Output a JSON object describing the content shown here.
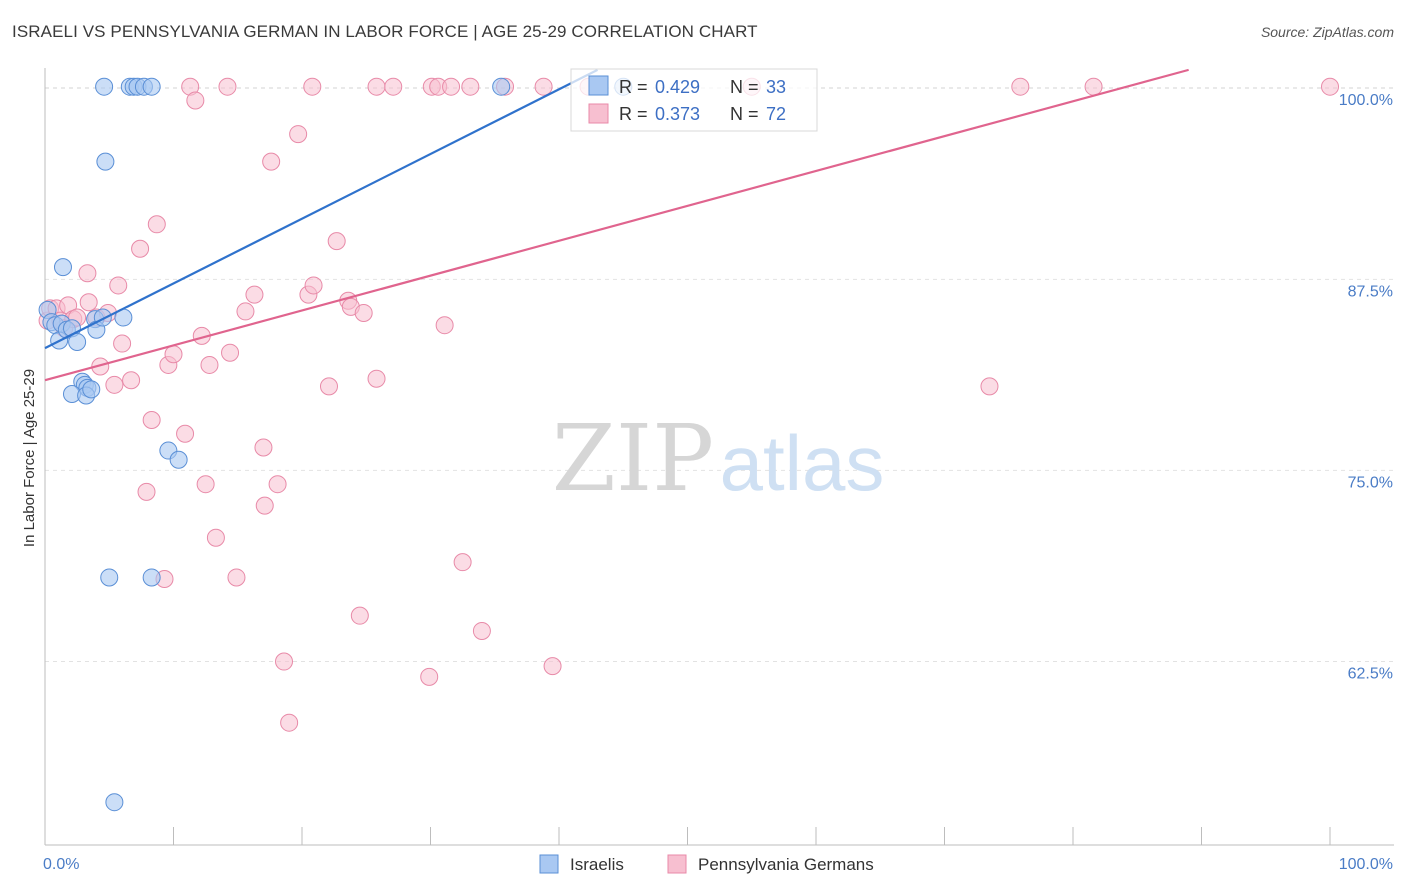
{
  "title": "ISRAELI VS PENNSYLVANIA GERMAN IN LABOR FORCE | AGE 25-29 CORRELATION CHART",
  "source": "Source: ZipAtlas.com",
  "watermark": {
    "zip": "ZIP",
    "atlas": "atlas"
  },
  "colors": {
    "israelis_fill": "#a9c8f2",
    "israelis_stroke": "#5a8fd6",
    "israelis_line": "#2f72cc",
    "pg_fill": "#f7bfd0",
    "pg_stroke": "#e88aa8",
    "pg_line": "#e0648e",
    "grid": "#e2e2e2",
    "tick_text": "#4a7cc6"
  },
  "legend": {
    "israelis": {
      "r_label": "R = ",
      "r_value": "0.429",
      "n_label": "N = ",
      "n_value": "33"
    },
    "pg": {
      "r_label": "R = ",
      "r_value": "0.373",
      "n_label": "N = ",
      "n_value": "72"
    }
  },
  "chart_data": {
    "type": "scatter",
    "title": "ISRAELI VS PENNSYLVANIA GERMAN IN LABOR FORCE | AGE 25-29 CORRELATION CHART",
    "xlabel": "",
    "ylabel": "In Labor Force | Age 25-29",
    "xlim": [
      0,
      100
    ],
    "ylim": [
      50.5,
      102.5
    ],
    "x_tick_labels": [
      "0.0%",
      "100.0%"
    ],
    "y_ticks": [
      {
        "value": 62.5,
        "label": "62.5%"
      },
      {
        "value": 75.0,
        "label": "75.0%"
      },
      {
        "value": 87.5,
        "label": "87.5%"
      },
      {
        "value": 100.0,
        "label": "100.0%"
      }
    ],
    "series": [
      {
        "name": "Israelis",
        "r": 0.429,
        "n": 33,
        "trend": {
          "x": [
            0,
            43.0
          ],
          "y": [
            83.0,
            101.2
          ]
        },
        "points": [
          [
            0.2,
            85.5
          ],
          [
            0.5,
            84.7
          ],
          [
            0.8,
            84.5
          ],
          [
            1.1,
            83.5
          ],
          [
            1.3,
            84.6
          ],
          [
            1.4,
            88.3
          ],
          [
            1.7,
            84.2
          ],
          [
            2.1,
            84.3
          ],
          [
            2.5,
            83.4
          ],
          [
            2.9,
            80.8
          ],
          [
            3.1,
            80.6
          ],
          [
            3.3,
            80.4
          ],
          [
            2.1,
            80.0
          ],
          [
            3.2,
            79.9
          ],
          [
            3.6,
            80.3
          ],
          [
            3.9,
            84.9
          ],
          [
            4.0,
            84.2
          ],
          [
            4.5,
            85.0
          ],
          [
            4.6,
            100.1
          ],
          [
            4.7,
            95.2
          ],
          [
            5.0,
            68.0
          ],
          [
            5.4,
            53.3
          ],
          [
            6.1,
            85.0
          ],
          [
            6.6,
            100.1
          ],
          [
            6.9,
            100.1
          ],
          [
            7.2,
            100.1
          ],
          [
            7.7,
            100.1
          ],
          [
            8.3,
            100.1
          ],
          [
            8.3,
            68.0
          ],
          [
            9.6,
            76.3
          ],
          [
            10.4,
            75.7
          ],
          [
            35.5,
            100.1
          ],
          [
            45.0,
            100.1
          ]
        ]
      },
      {
        "name": "Pennsylvania Germans",
        "r": 0.373,
        "n": 72,
        "trend": {
          "x": [
            0,
            89.0
          ],
          "y": [
            80.9,
            101.2
          ]
        },
        "points": [
          [
            0.2,
            84.8
          ],
          [
            0.4,
            85.6
          ],
          [
            0.9,
            85.6
          ],
          [
            1.2,
            84.8
          ],
          [
            1.5,
            84.3
          ],
          [
            1.8,
            85.8
          ],
          [
            2.2,
            84.9
          ],
          [
            2.5,
            85.0
          ],
          [
            3.4,
            86.0
          ],
          [
            3.3,
            87.9
          ],
          [
            4.0,
            85.0
          ],
          [
            4.3,
            81.8
          ],
          [
            4.9,
            85.3
          ],
          [
            5.4,
            80.6
          ],
          [
            5.7,
            87.1
          ],
          [
            6.0,
            83.3
          ],
          [
            6.7,
            80.9
          ],
          [
            7.4,
            89.5
          ],
          [
            8.3,
            78.3
          ],
          [
            7.9,
            73.6
          ],
          [
            8.7,
            91.1
          ],
          [
            9.3,
            67.9
          ],
          [
            9.6,
            81.9
          ],
          [
            10.0,
            82.6
          ],
          [
            10.9,
            77.4
          ],
          [
            11.3,
            100.1
          ],
          [
            11.7,
            99.2
          ],
          [
            12.2,
            83.8
          ],
          [
            12.5,
            74.1
          ],
          [
            12.8,
            81.9
          ],
          [
            13.3,
            70.6
          ],
          [
            14.2,
            100.1
          ],
          [
            14.4,
            82.7
          ],
          [
            14.9,
            68.0
          ],
          [
            15.6,
            85.4
          ],
          [
            16.3,
            86.5
          ],
          [
            17.0,
            76.5
          ],
          [
            17.1,
            72.7
          ],
          [
            17.6,
            95.2
          ],
          [
            18.1,
            74.1
          ],
          [
            18.6,
            62.5
          ],
          [
            19.0,
            58.5
          ],
          [
            19.7,
            97.0
          ],
          [
            20.5,
            86.5
          ],
          [
            20.9,
            87.1
          ],
          [
            20.8,
            100.1
          ],
          [
            22.1,
            80.5
          ],
          [
            22.7,
            90.0
          ],
          [
            23.6,
            86.1
          ],
          [
            23.8,
            85.7
          ],
          [
            24.5,
            65.5
          ],
          [
            24.8,
            85.3
          ],
          [
            25.8,
            81.0
          ],
          [
            25.8,
            100.1
          ],
          [
            27.1,
            100.1
          ],
          [
            29.9,
            61.5
          ],
          [
            30.1,
            100.1
          ],
          [
            30.6,
            100.1
          ],
          [
            31.1,
            84.5
          ],
          [
            31.6,
            100.1
          ],
          [
            32.5,
            69.0
          ],
          [
            33.1,
            100.1
          ],
          [
            34.0,
            64.5
          ],
          [
            35.8,
            100.1
          ],
          [
            38.8,
            100.1
          ],
          [
            39.5,
            62.2
          ],
          [
            42.3,
            100.1
          ],
          [
            55.0,
            100.1
          ],
          [
            73.5,
            80.5
          ],
          [
            75.9,
            100.1
          ],
          [
            81.6,
            100.1
          ],
          [
            100.0,
            100.1
          ]
        ]
      }
    ]
  },
  "bottom_legend": {
    "israelis": "Israelis",
    "pg": "Pennsylvania Germans"
  }
}
